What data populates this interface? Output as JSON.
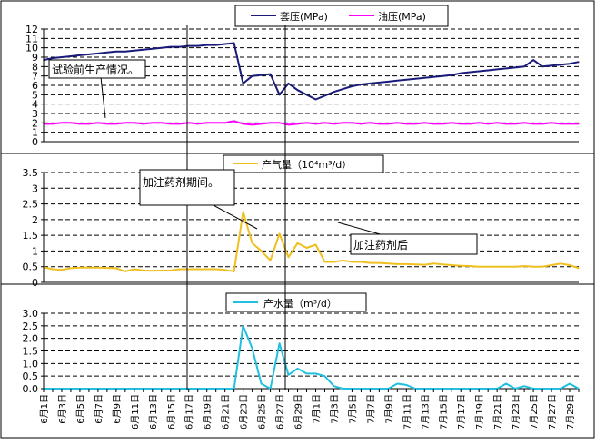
{
  "colors": {
    "casing": "#1a1a7a",
    "tubing": "#ff00ff",
    "gas": "#f0c020",
    "water": "#22c0e0",
    "grid": "#000000"
  },
  "x_labels": [
    "6月1日",
    "6月3日",
    "6月5日",
    "6月7日",
    "6月9日",
    "6月11日",
    "6月13日",
    "6月15日",
    "6月17日",
    "6月19日",
    "6月21日",
    "6月23日",
    "6月25日",
    "6月27日",
    "6月29日",
    "7月1日",
    "7月3日",
    "7月5日",
    "7月7日",
    "7月9日",
    "7月11日",
    "7月13日",
    "7月15日",
    "7月17日",
    "7月19日",
    "7月21日",
    "7月23日",
    "7月25日",
    "7月27日",
    "7月29日"
  ],
  "annotations": {
    "before": "试验前生产情况。",
    "during": "加注药剂期间。",
    "after": "加注药剂后"
  },
  "chart_data": [
    {
      "type": "line",
      "title": "",
      "x_count": 60,
      "ylim": [
        0,
        12
      ],
      "yticks": [
        "0",
        "1",
        "2",
        "3",
        "4",
        "5",
        "6",
        "7",
        "8",
        "9",
        "10",
        "11",
        "12"
      ],
      "series": [
        {
          "name": "套压(MPa)",
          "values": [
            8.7,
            8.9,
            9.0,
            9.1,
            9.2,
            9.3,
            9.4,
            9.5,
            9.6,
            9.6,
            9.7,
            9.8,
            9.9,
            10.0,
            10.1,
            10.1,
            10.2,
            10.2,
            10.3,
            10.3,
            10.4,
            10.5,
            6.2,
            7.0,
            7.1,
            7.2,
            5.0,
            6.2,
            5.5,
            5.0,
            4.5,
            4.9,
            5.3,
            5.6,
            5.9,
            6.1,
            6.2,
            6.3,
            6.4,
            6.5,
            6.6,
            6.7,
            6.8,
            6.9,
            7.0,
            7.1,
            7.3,
            7.4,
            7.5,
            7.6,
            7.7,
            7.8,
            7.9,
            8.0,
            8.7,
            8.0,
            8.1,
            8.2,
            8.3,
            8.5
          ]
        },
        {
          "name": "油压(MPa)",
          "values": [
            1.9,
            1.9,
            2.0,
            2.0,
            1.9,
            1.9,
            2.0,
            1.9,
            1.9,
            2.0,
            2.0,
            1.9,
            2.0,
            2.0,
            1.9,
            1.9,
            2.0,
            1.9,
            2.0,
            2.0,
            2.0,
            2.2,
            1.9,
            1.8,
            1.9,
            2.0,
            2.0,
            1.8,
            1.9,
            2.0,
            1.9,
            2.0,
            1.9,
            2.0,
            2.0,
            1.9,
            2.0,
            1.9,
            1.9,
            2.0,
            1.9,
            1.9,
            2.0,
            1.9,
            1.9,
            2.0,
            1.9,
            1.9,
            2.0,
            1.9,
            2.0,
            1.9,
            1.9,
            2.0,
            1.9,
            1.9,
            2.0,
            1.9,
            1.9,
            1.9
          ]
        }
      ]
    },
    {
      "type": "line",
      "title": "",
      "x_count": 60,
      "ylim": [
        0,
        3.5
      ],
      "yticks": [
        "0",
        "0.5",
        "1",
        "1.5",
        "2",
        "2.5",
        "3",
        "3.5"
      ],
      "series": [
        {
          "name": "产气量（10⁴m³/d）",
          "values": [
            0.48,
            0.42,
            0.4,
            0.45,
            0.47,
            0.47,
            0.47,
            0.46,
            0.45,
            0.35,
            0.42,
            0.38,
            0.37,
            0.38,
            0.38,
            0.42,
            0.42,
            0.42,
            0.42,
            0.42,
            0.4,
            0.35,
            2.25,
            1.25,
            1.0,
            0.7,
            1.55,
            0.8,
            1.25,
            1.1,
            1.2,
            0.65,
            0.65,
            0.7,
            0.65,
            0.65,
            0.62,
            0.62,
            0.6,
            0.58,
            0.58,
            0.57,
            0.56,
            0.6,
            0.57,
            0.55,
            0.53,
            0.52,
            0.5,
            0.5,
            0.5,
            0.5,
            0.5,
            0.52,
            0.5,
            0.5,
            0.55,
            0.6,
            0.55,
            0.45
          ]
        }
      ]
    },
    {
      "type": "line",
      "title": "",
      "x_count": 60,
      "ylim": [
        0,
        3.0
      ],
      "yticks": [
        "0.0",
        "0.5",
        "1.0",
        "1.5",
        "2.0",
        "2.5",
        "3.0"
      ],
      "series": [
        {
          "name": "产水量（m³/d）",
          "values": [
            0,
            0,
            0,
            0,
            0,
            0,
            0,
            0,
            0,
            0,
            0,
            0,
            0,
            0,
            0,
            0,
            0,
            0,
            0,
            0,
            0,
            0,
            2.5,
            1.6,
            0.2,
            0,
            1.8,
            0.55,
            0.8,
            0.6,
            0.6,
            0.5,
            0.1,
            0,
            0,
            0,
            0,
            0,
            0,
            0.2,
            0.15,
            0,
            0,
            0,
            0,
            0,
            0,
            0,
            0,
            0,
            0,
            0.2,
            0,
            0.1,
            0,
            0,
            0,
            0,
            0.2,
            0
          ]
        }
      ]
    }
  ]
}
